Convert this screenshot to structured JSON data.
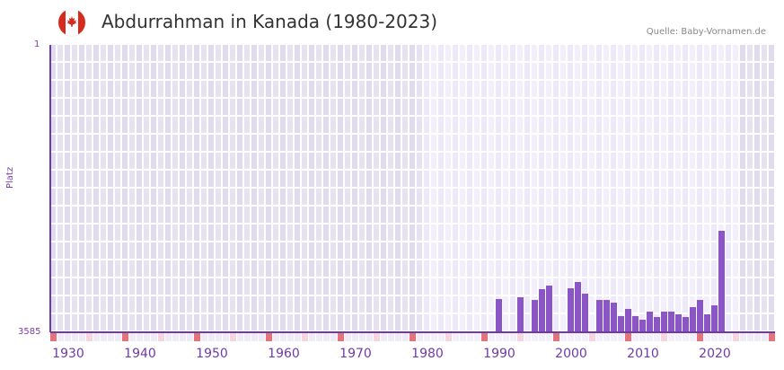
{
  "header": {
    "title": "Abdurrahman in Kanada (1980-2023)",
    "source": "Quelle: Baby-Vornamen.de",
    "flag_icon": "canada-flag-icon"
  },
  "axes": {
    "y_top_label": "1",
    "y_bottom_label": "3585",
    "y_title": "Platz",
    "x_tick_labels": [
      "1930",
      "1940",
      "1950",
      "1960",
      "1970",
      "1980",
      "1990",
      "2000",
      "2010",
      "2020"
    ]
  },
  "colors": {
    "bar": "#8b55c6",
    "axis": "#6f3aa8",
    "marker_strong": "#e5737c",
    "marker_light": "#f5d5de",
    "bg_outside": "#e4e0ee",
    "bg_inside": "#f1eefa"
  },
  "chart_data": {
    "type": "bar",
    "title": "Abdurrahman in Kanada (1980-2023)",
    "xlabel": "",
    "ylabel": "Platz",
    "y_inverted": true,
    "ylim": [
      3585,
      1
    ],
    "x_range": [
      1928,
      2028
    ],
    "highlight_range": [
      1980,
      2023
    ],
    "categories": [
      1990,
      1993,
      1995,
      1996,
      1997,
      2000,
      2001,
      2002,
      2004,
      2005,
      2006,
      2007,
      2008,
      2009,
      2010,
      2011,
      2012,
      2013,
      2014,
      2015,
      2016,
      2017,
      2018,
      2019,
      2020,
      2021
    ],
    "values": [
      3170,
      3150,
      3180,
      3050,
      3000,
      3040,
      2960,
      3100,
      3180,
      3180,
      3215,
      3385,
      3295,
      3385,
      3430,
      3330,
      3395,
      3330,
      3330,
      3360,
      3395,
      3270,
      3180,
      3360,
      3250,
      2320
    ]
  }
}
